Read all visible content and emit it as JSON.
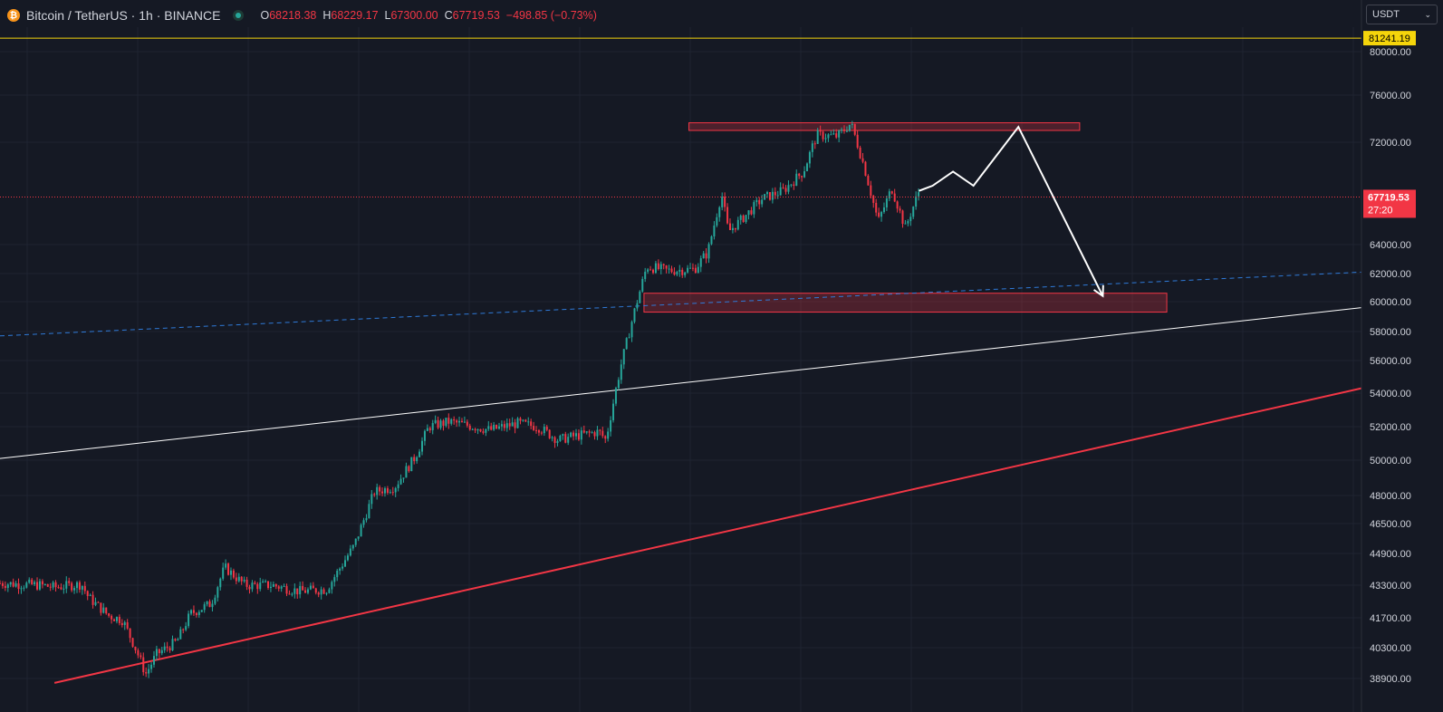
{
  "header": {
    "symbol": "Bitcoin / TetherUS · 1h · BINANCE",
    "coin_glyph": "₿",
    "ohlc": [
      {
        "key": "O",
        "value": "68218.38"
      },
      {
        "key": "H",
        "value": "68229.17"
      },
      {
        "key": "L",
        "value": "67300.00"
      },
      {
        "key": "C",
        "value": "67719.53"
      }
    ],
    "change": "−498.85 (−0.73%)"
  },
  "currency_button": {
    "label": "USDT",
    "icon": "chevron-down-icon"
  },
  "colors": {
    "background": "#151924",
    "grid": "#1f2431",
    "up": "#26a69a",
    "down": "#f23645",
    "highlight_line": "#f5d50b",
    "dashed_line": "#2f7ad8",
    "white_line": "#ffffff",
    "red_line": "#f23645"
  },
  "chart_data": {
    "type": "candlestick",
    "price_axis": {
      "ticks": [
        80000,
        76000,
        72000,
        64000,
        62000,
        60000,
        58000,
        56000,
        54000,
        52000,
        50000,
        48000,
        46500,
        44900,
        43300,
        41700,
        40300,
        38900
      ],
      "tick_labels": [
        "80000.00",
        "76000.00",
        "72000.00",
        "64000.00",
        "62000.00",
        "60000.00",
        "58000.00",
        "56000.00",
        "54000.00",
        "52000.00",
        "50000.00",
        "48000.00",
        "46500.00",
        "44900.00",
        "43300.00",
        "41700.00",
        "40300.00",
        "38900.00"
      ]
    },
    "highlight_price": {
      "value": 81241.19,
      "label": "81241.19"
    },
    "last_price": {
      "value": 67719.53,
      "label": "67719.53",
      "countdown": "27:20"
    },
    "price_path": [
      [
        0,
        43400
      ],
      [
        0.03,
        43300
      ],
      [
        0.04,
        43200
      ],
      [
        0.06,
        43350
      ],
      [
        0.065,
        42700
      ],
      [
        0.08,
        41800
      ],
      [
        0.09,
        41600
      ],
      [
        0.1,
        40200
      ],
      [
        0.107,
        39100
      ],
      [
        0.115,
        40000
      ],
      [
        0.13,
        40600
      ],
      [
        0.14,
        41900
      ],
      [
        0.155,
        42400
      ],
      [
        0.165,
        44200
      ],
      [
        0.18,
        43300
      ],
      [
        0.2,
        43300
      ],
      [
        0.22,
        43000
      ],
      [
        0.24,
        43100
      ],
      [
        0.26,
        45300
      ],
      [
        0.275,
        48200
      ],
      [
        0.29,
        48500
      ],
      [
        0.305,
        50200
      ],
      [
        0.315,
        52000
      ],
      [
        0.33,
        52300
      ],
      [
        0.36,
        51800
      ],
      [
        0.38,
        52200
      ],
      [
        0.395,
        52000
      ],
      [
        0.41,
        51200
      ],
      [
        0.42,
        51400
      ],
      [
        0.44,
        51700
      ],
      [
        0.445,
        51200
      ],
      [
        0.455,
        55300
      ],
      [
        0.465,
        59000
      ],
      [
        0.475,
        62500
      ],
      [
        0.49,
        62200
      ],
      [
        0.51,
        62300
      ],
      [
        0.52,
        63500
      ],
      [
        0.53,
        68000
      ],
      [
        0.535,
        65000
      ],
      [
        0.545,
        66000
      ],
      [
        0.56,
        67600
      ],
      [
        0.575,
        68200
      ],
      [
        0.59,
        69700
      ],
      [
        0.6,
        72600
      ],
      [
        0.615,
        72500
      ],
      [
        0.625,
        73600
      ],
      [
        0.635,
        70000
      ],
      [
        0.645,
        65800
      ],
      [
        0.655,
        68400
      ],
      [
        0.665,
        65300
      ],
      [
        0.675,
        68200
      ]
    ],
    "levels": [
      {
        "name": "resistance-zone",
        "low": 73000,
        "high": 73650
      },
      {
        "name": "support-zone",
        "low": 59300,
        "high": 60600
      }
    ],
    "trendlines": [
      {
        "name": "dashed-blue-trendline",
        "start": [
          0,
          57700
        ],
        "end": [
          1,
          62100
        ]
      },
      {
        "name": "white-trendline",
        "start": [
          0,
          50100
        ],
        "end": [
          1,
          59600
        ]
      },
      {
        "name": "red-trendline",
        "start": [
          0.04,
          38700
        ],
        "end": [
          1,
          54300
        ]
      }
    ],
    "projection_path": [
      [
        0.675,
        68200
      ],
      [
        0.685,
        68600
      ],
      [
        0.7,
        69700
      ],
      [
        0.715,
        68600
      ],
      [
        0.748,
        73300
      ],
      [
        0.81,
        60400
      ]
    ]
  }
}
